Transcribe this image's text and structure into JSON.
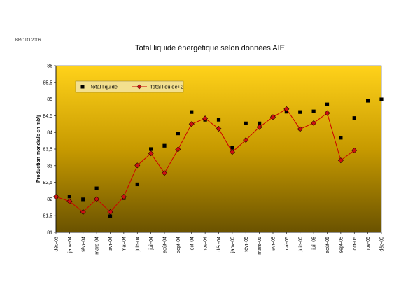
{
  "header": {
    "credit": "BROTO 2006",
    "title": "Total liquide énergétique selon données AIE"
  },
  "chart_data": {
    "type": "line",
    "title": "Total liquide énergétique selon données AIE",
    "xlabel": "",
    "ylabel": "Production mondiale en mb/j",
    "ylim": [
      81,
      86
    ],
    "yticks": [
      81,
      81.5,
      82,
      82.5,
      83,
      83.5,
      84,
      84.5,
      85,
      85.5,
      86
    ],
    "grid": false,
    "legend_position": "top-left",
    "categories": [
      "déc-03",
      "janv-04",
      "févr-04",
      "mars-04",
      "avr-04",
      "mai-04",
      "juin-04",
      "juil-04",
      "août-04",
      "sept-04",
      "oct-04",
      "nov-04",
      "déc-04",
      "janv-05",
      "févr-05",
      "mars-05",
      "avr-05",
      "mai-05",
      "juin-05",
      "juil-05",
      "août-05",
      "sept-05",
      "oct-05",
      "nov-05",
      "déc-05"
    ],
    "series": [
      {
        "name": "total liquide",
        "color": "#000000",
        "marker": "square",
        "line": false,
        "values": [
          82.07,
          82.08,
          81.99,
          82.32,
          81.48,
          82.03,
          82.44,
          83.5,
          83.6,
          83.97,
          84.61,
          84.38,
          84.38,
          83.54,
          84.27,
          84.27,
          84.46,
          84.62,
          84.61,
          84.63,
          84.84,
          83.84,
          84.43,
          84.95,
          84.99
        ]
      },
      {
        "name": "Total liquide+2",
        "color": "#cc0000",
        "marker": "diamond",
        "line": true,
        "values": [
          82.07,
          81.93,
          81.61,
          82.0,
          81.61,
          82.07,
          83.01,
          83.37,
          82.78,
          83.49,
          84.25,
          84.42,
          84.11,
          83.41,
          83.77,
          84.16,
          84.46,
          84.7,
          84.1,
          84.28,
          84.58,
          83.16,
          83.46,
          null,
          null
        ]
      }
    ]
  }
}
